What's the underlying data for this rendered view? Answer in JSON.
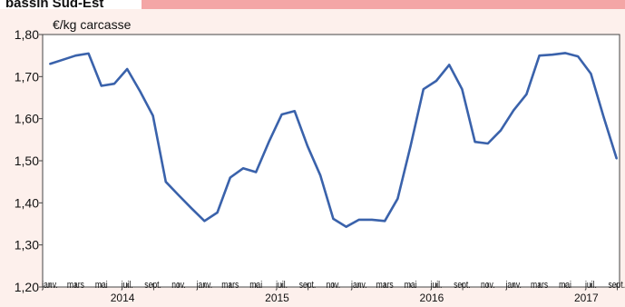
{
  "header": {
    "title": "bassin Sud-Est"
  },
  "chart_data": {
    "type": "line",
    "title": "",
    "ylabel": "€/kg carcasse",
    "xlabel": "",
    "ylim": [
      1.2,
      1.8
    ],
    "yticks": [
      "1,20",
      "1,30",
      "1,40",
      "1,50",
      "1,60",
      "1,70",
      "1,80"
    ],
    "x_month_labels": [
      "janv.",
      "mars",
      "mai",
      "juil.",
      "sept.",
      "nov.",
      "janv.",
      "mars",
      "mai",
      "juil.",
      "sept.",
      "nov.",
      "janv.",
      "mars",
      "mai",
      "juil.",
      "sept.",
      "nov.",
      "janv.",
      "mars",
      "mai",
      "juil.",
      "sept."
    ],
    "x_year_labels": [
      "2014",
      "2015",
      "2016",
      "2017"
    ],
    "grid": false,
    "line_color": "#3a62ab",
    "series": [
      {
        "values": [
          1.73,
          1.74,
          1.75,
          1.755,
          1.678,
          1.683,
          1.718,
          1.665,
          1.607,
          1.45,
          1.418,
          1.387,
          1.357,
          1.377,
          1.46,
          1.482,
          1.473,
          1.545,
          1.61,
          1.618,
          1.535,
          1.465,
          1.362,
          1.343,
          1.36,
          1.36,
          1.357,
          1.41,
          1.535,
          1.67,
          1.69,
          1.728,
          1.67,
          1.545,
          1.541,
          1.572,
          1.62,
          1.658,
          1.75,
          1.752,
          1.756,
          1.748,
          1.707,
          1.603,
          1.505
        ]
      }
    ]
  }
}
